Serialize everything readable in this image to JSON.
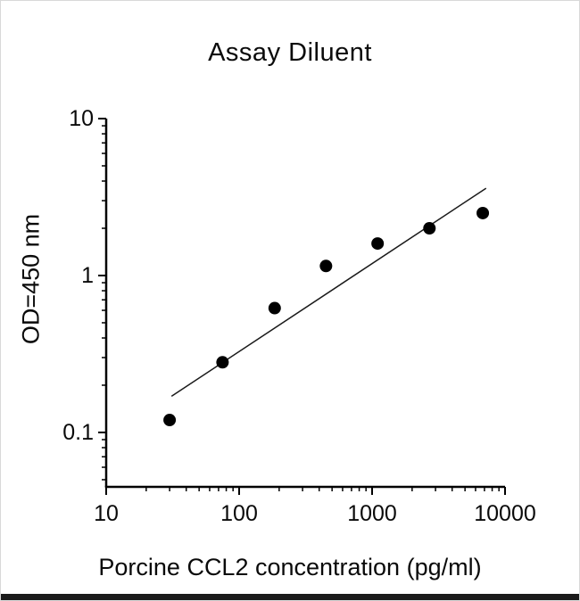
{
  "figure": {
    "title": "Assay Diluent",
    "x_axis_label": "Porcine CCL2 concentration (pg/ml)",
    "y_axis_label": "OD=450 nm"
  },
  "chart_data": {
    "type": "scatter",
    "title": "Assay Diluent",
    "xlabel": "Porcine CCL2 concentration (pg/ml)",
    "ylabel": "OD=450 nm",
    "x_scale": "log",
    "y_scale": "log",
    "xlim": [
      10,
      10000
    ],
    "ylim": [
      0.045,
      10
    ],
    "x_ticks": [
      10,
      100,
      1000,
      10000
    ],
    "y_ticks": [
      0.1,
      1,
      10
    ],
    "grid": false,
    "legend_position": "none",
    "marker_color": "#000000",
    "line_color": "#1a1a1a",
    "points": [
      {
        "x": 30,
        "y": 0.12
      },
      {
        "x": 75,
        "y": 0.28
      },
      {
        "x": 185,
        "y": 0.62
      },
      {
        "x": 450,
        "y": 1.15
      },
      {
        "x": 1100,
        "y": 1.6
      },
      {
        "x": 2700,
        "y": 2.0
      },
      {
        "x": 6800,
        "y": 2.5
      }
    ],
    "fit_line": {
      "x1": 31,
      "y1": 0.17,
      "x2": 7200,
      "y2": 3.6
    }
  }
}
